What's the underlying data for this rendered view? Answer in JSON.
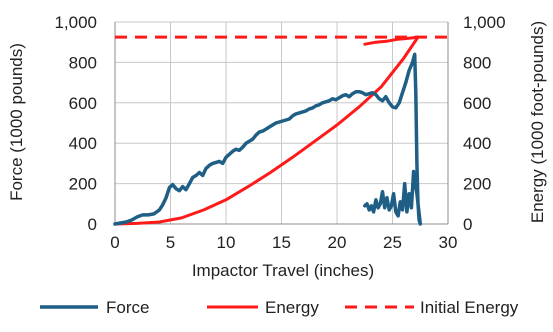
{
  "chart_data": {
    "type": "line",
    "title": "",
    "xlabel": "Impactor Travel (inches)",
    "ylabel": "Force (1000 pounds)",
    "y2label": "Energy (1000 foot-pounds)",
    "xlim": [
      0,
      30
    ],
    "ylim": [
      0,
      1000
    ],
    "y2lim": [
      0,
      1000
    ],
    "x_ticks": [
      "0",
      "5",
      "10",
      "15",
      "20",
      "25",
      "30"
    ],
    "y_ticks": [
      "0",
      "200",
      "400",
      "600",
      "800",
      "1,000"
    ],
    "y2_ticks": [
      "0",
      "200",
      "400",
      "600",
      "800",
      "1,000"
    ],
    "grid": true,
    "legend_position": "bottom",
    "colors": {
      "force": "#1f5f86",
      "energy": "#ff1a1a",
      "initial": "#ff1a1a",
      "grid": "#c8c8c8",
      "axis": "#8c8c8c"
    },
    "series": [
      {
        "name": "Force",
        "axis": "left",
        "style": "solid",
        "x": [
          0,
          0.5,
          1,
          1.5,
          2,
          2.5,
          3,
          3.5,
          4,
          4.3,
          4.6,
          4.9,
          5.2,
          5.5,
          5.8,
          6.1,
          6.4,
          6.7,
          7.0,
          7.3,
          7.6,
          7.9,
          8.2,
          8.5,
          8.8,
          9.1,
          9.4,
          9.7,
          10.0,
          10.3,
          10.6,
          10.9,
          11.2,
          11.5,
          11.8,
          12.1,
          12.4,
          12.7,
          13.0,
          13.3,
          13.6,
          13.9,
          14.2,
          14.5,
          14.8,
          15.1,
          15.4,
          15.7,
          16.0,
          16.3,
          16.6,
          16.9,
          17.2,
          17.5,
          17.8,
          18.1,
          18.4,
          18.7,
          19.0,
          19.3,
          19.6,
          19.9,
          20.2,
          20.5,
          20.8,
          21.1,
          21.4,
          21.7,
          22.0,
          22.3,
          22.6,
          22.9,
          23.2,
          23.5,
          23.8,
          24.1,
          24.4,
          24.7,
          25.0,
          25.3,
          25.6,
          25.9,
          26.2,
          26.5,
          26.8,
          27.0,
          27.1,
          27.2,
          27.3,
          27.4,
          27.5,
          27.2,
          26.9,
          26.7,
          26.5,
          26.3,
          26.1,
          25.9,
          25.7,
          25.5,
          25.3,
          25.1,
          24.9,
          24.7,
          24.5,
          24.3,
          24.1,
          23.9,
          23.7,
          23.5,
          23.3,
          23.1,
          22.9,
          22.7,
          22.5
        ],
        "y": [
          0,
          5,
          10,
          20,
          35,
          45,
          45,
          50,
          70,
          95,
          130,
          180,
          195,
          175,
          165,
          185,
          170,
          200,
          230,
          240,
          255,
          240,
          275,
          290,
          300,
          305,
          310,
          300,
          330,
          345,
          360,
          370,
          365,
          380,
          400,
          410,
          420,
          440,
          455,
          460,
          470,
          480,
          490,
          500,
          505,
          510,
          515,
          520,
          535,
          545,
          550,
          555,
          560,
          570,
          575,
          585,
          590,
          600,
          605,
          610,
          620,
          615,
          625,
          635,
          640,
          630,
          645,
          655,
          655,
          650,
          640,
          645,
          650,
          640,
          620,
          610,
          630,
          600,
          580,
          575,
          600,
          650,
          700,
          760,
          800,
          840,
          650,
          300,
          100,
          20,
          0,
          150,
          260,
          80,
          150,
          60,
          200,
          70,
          110,
          40,
          60,
          150,
          90,
          70,
          130,
          80,
          160,
          100,
          80,
          120,
          60,
          90,
          70,
          100,
          90
        ]
      },
      {
        "name": "Energy",
        "axis": "right",
        "style": "solid",
        "x": [
          0,
          2,
          4,
          6,
          8,
          10,
          12,
          14,
          16,
          18,
          20,
          22,
          24,
          26,
          27.3,
          26.5,
          25.5,
          24.5,
          23.5,
          22.5
        ],
        "y": [
          0,
          3,
          10,
          30,
          70,
          120,
          185,
          255,
          330,
          410,
          490,
          580,
          680,
          820,
          925,
          920,
          915,
          905,
          900,
          890
        ]
      },
      {
        "name": "Initial Energy",
        "axis": "right",
        "style": "dashed",
        "x": [
          0,
          30
        ],
        "y": [
          925,
          925
        ]
      }
    ],
    "legend": [
      "Force",
      "Energy",
      "Initial Energy"
    ]
  }
}
